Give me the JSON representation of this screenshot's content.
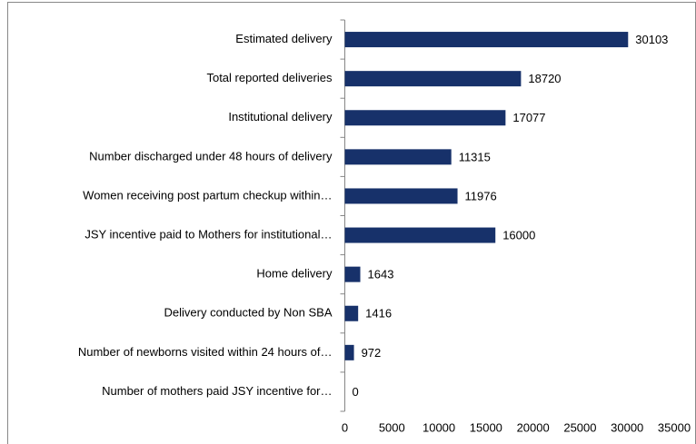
{
  "chart_data": {
    "type": "bar",
    "orientation": "horizontal",
    "categories": [
      "Estimated delivery",
      "Total reported deliveries",
      "Institutional delivery",
      "Number discharged under 48 hours of delivery",
      "Women receiving post partum checkup within…",
      "JSY incentive paid to Mothers for institutional…",
      "Home delivery",
      "Delivery conducted by Non SBA",
      "Number of newborns visited within 24 hours of…",
      "Number of mothers paid JSY incentive for…"
    ],
    "values": [
      30103,
      18720,
      17077,
      11315,
      11976,
      16000,
      1643,
      1416,
      972,
      0
    ],
    "color": "#17316a",
    "xlim": [
      0,
      35000
    ],
    "xticks": [
      0,
      5000,
      10000,
      15000,
      20000,
      25000,
      30000,
      35000
    ],
    "grid": false
  }
}
